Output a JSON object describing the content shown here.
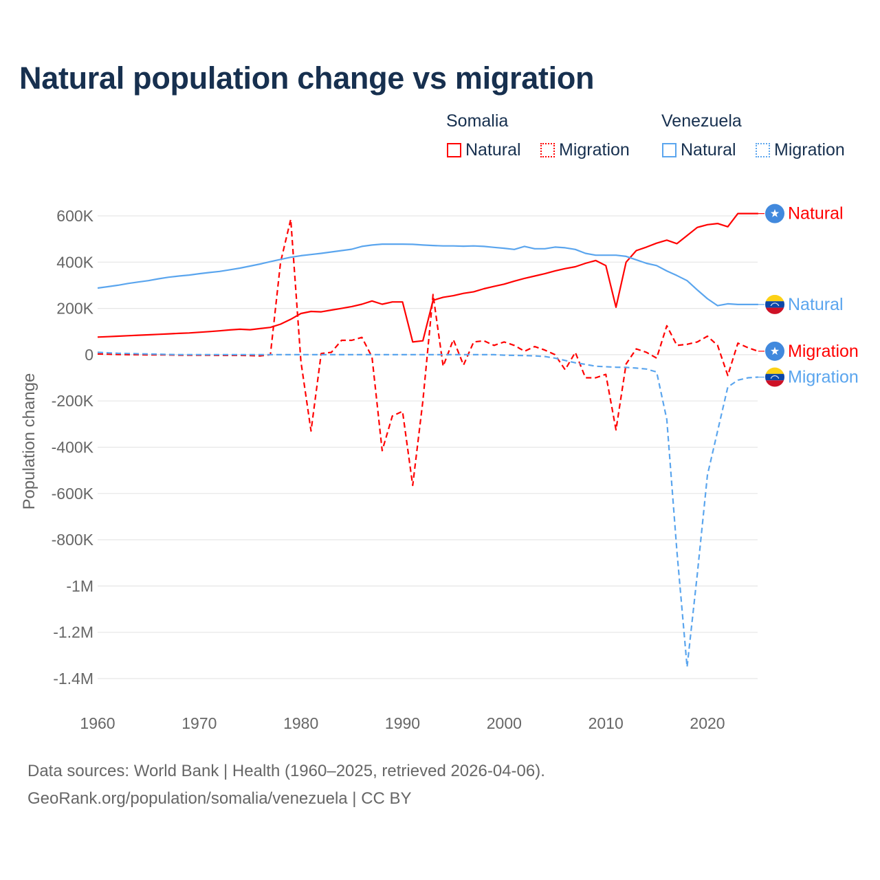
{
  "chart_data": {
    "type": "line",
    "title": "Natural population change vs migration",
    "xlabel": "",
    "ylabel": "Population change",
    "xlim": [
      1960,
      2025
    ],
    "ylim": [
      -1400000,
      600000
    ],
    "x_ticks": [
      1960,
      1970,
      1980,
      1990,
      2000,
      2010,
      2020
    ],
    "x_tick_labels": [
      "1960",
      "1970",
      "1980",
      "1990",
      "2000",
      "2010",
      "2020"
    ],
    "y_ticks": [
      600000,
      400000,
      200000,
      0,
      -200000,
      -400000,
      -600000,
      -800000,
      -1000000,
      -1200000,
      -1400000
    ],
    "y_tick_labels": [
      "600K",
      "400K",
      "200K",
      "0",
      "-200K",
      "-400K",
      "-600K",
      "-800K",
      "-1M",
      "-1.2M",
      "-1.4M"
    ],
    "grid": true,
    "legend_placement": "top-right",
    "legend": {
      "groups": [
        {
          "country": "Somalia",
          "items": [
            "Natural",
            "Migration"
          ]
        },
        {
          "country": "Venezuela",
          "items": [
            "Natural",
            "Migration"
          ]
        }
      ]
    },
    "x": [
      1960,
      1961,
      1962,
      1963,
      1964,
      1965,
      1966,
      1967,
      1968,
      1969,
      1970,
      1971,
      1972,
      1973,
      1974,
      1975,
      1976,
      1977,
      1978,
      1979,
      1980,
      1981,
      1982,
      1983,
      1984,
      1985,
      1986,
      1987,
      1988,
      1989,
      1990,
      1991,
      1992,
      1993,
      1994,
      1995,
      1996,
      1997,
      1998,
      1999,
      2000,
      2001,
      2002,
      2003,
      2004,
      2005,
      2006,
      2007,
      2008,
      2009,
      2010,
      2011,
      2012,
      2013,
      2014,
      2015,
      2016,
      2017,
      2018,
      2019,
      2020,
      2021,
      2022,
      2023,
      2024,
      2025
    ],
    "series": [
      {
        "name": "Somalia Natural",
        "country": "Somalia",
        "kind": "Natural",
        "color": "#ff0000",
        "dash": false,
        "end_label": "Natural",
        "values": [
          76000,
          78000,
          80000,
          82000,
          84000,
          86000,
          88000,
          90000,
          92000,
          94000,
          97000,
          100000,
          103000,
          107000,
          110000,
          108000,
          113000,
          118000,
          132000,
          153000,
          178000,
          187000,
          185000,
          193000,
          200000,
          208000,
          218000,
          232000,
          218000,
          228000,
          228000,
          55000,
          60000,
          235000,
          248000,
          255000,
          265000,
          272000,
          285000,
          295000,
          305000,
          318000,
          330000,
          340000,
          350000,
          362000,
          372000,
          380000,
          395000,
          407000,
          385000,
          205000,
          400000,
          450000,
          465000,
          482000,
          495000,
          480000,
          515000,
          550000,
          562000,
          567000,
          553000,
          610000,
          610000,
          610000
        ]
      },
      {
        "name": "Somalia Migration",
        "country": "Somalia",
        "kind": "Migration",
        "color": "#ff0000",
        "dash": true,
        "end_label": "Migration",
        "values": [
          3000,
          2000,
          1000,
          0,
          0,
          -1000,
          -1000,
          -1000,
          -2000,
          -2000,
          -2000,
          -2000,
          -3000,
          -3000,
          -3000,
          -4000,
          -5000,
          0,
          400000,
          585000,
          -30000,
          -330000,
          5000,
          10000,
          62000,
          62000,
          75000,
          -10000,
          -415000,
          -265000,
          -245000,
          -565000,
          -200000,
          260000,
          -50000,
          65000,
          -45000,
          55000,
          60000,
          40000,
          55000,
          40000,
          15000,
          35000,
          20000,
          0,
          -65000,
          10000,
          -100000,
          -100000,
          -85000,
          -325000,
          -40000,
          25000,
          10000,
          -15000,
          125000,
          40000,
          45000,
          55000,
          80000,
          40000,
          -90000,
          50000,
          30000,
          15000
        ]
      },
      {
        "name": "Venezuela Natural",
        "country": "Venezuela",
        "kind": "Natural",
        "color": "#5aa5ee",
        "dash": false,
        "end_label": "Natural",
        "values": [
          288000,
          294000,
          300000,
          308000,
          314000,
          320000,
          328000,
          335000,
          340000,
          344000,
          350000,
          355000,
          360000,
          367000,
          374000,
          383000,
          392000,
          402000,
          412000,
          421000,
          428000,
          433000,
          438000,
          444000,
          450000,
          456000,
          468000,
          474000,
          478000,
          478000,
          478000,
          477000,
          474000,
          472000,
          470000,
          470000,
          469000,
          470000,
          468000,
          464000,
          460000,
          455000,
          468000,
          458000,
          458000,
          465000,
          462000,
          455000,
          438000,
          430000,
          430000,
          430000,
          425000,
          410000,
          395000,
          385000,
          362000,
          342000,
          320000,
          280000,
          242000,
          212000,
          220000,
          217000,
          217000,
          217000
        ]
      },
      {
        "name": "Venezuela Migration",
        "country": "Venezuela",
        "kind": "Migration",
        "color": "#5aa5ee",
        "dash": true,
        "end_label": "Migration",
        "values": [
          10000,
          8000,
          6000,
          5000,
          4000,
          3000,
          2000,
          1000,
          0,
          0,
          0,
          0,
          0,
          0,
          0,
          0,
          0,
          0,
          0,
          0,
          0,
          0,
          0,
          0,
          0,
          0,
          0,
          0,
          0,
          0,
          0,
          0,
          0,
          0,
          0,
          0,
          0,
          0,
          0,
          0,
          -2000,
          -3000,
          -4000,
          -5000,
          -8000,
          -15000,
          -25000,
          -35000,
          -42000,
          -50000,
          -52000,
          -54000,
          -55000,
          -58000,
          -62000,
          -75000,
          -280000,
          -850000,
          -1350000,
          -950000,
          -520000,
          -330000,
          -140000,
          -110000,
          -100000,
          -97000
        ]
      }
    ]
  },
  "legend_labels": {
    "somalia": "Somalia",
    "venezuela": "Venezuela",
    "natural": "Natural",
    "migration": "Migration"
  },
  "colors": {
    "somalia": "#ff0000",
    "venezuela": "#5aa5ee",
    "text": "#17304f"
  },
  "footer": {
    "line1": "Data sources: World Bank | Health (1960–2025, retrieved 2026-04-06).",
    "line2": "GeoRank.org/population/somalia/venezuela | CC BY"
  }
}
